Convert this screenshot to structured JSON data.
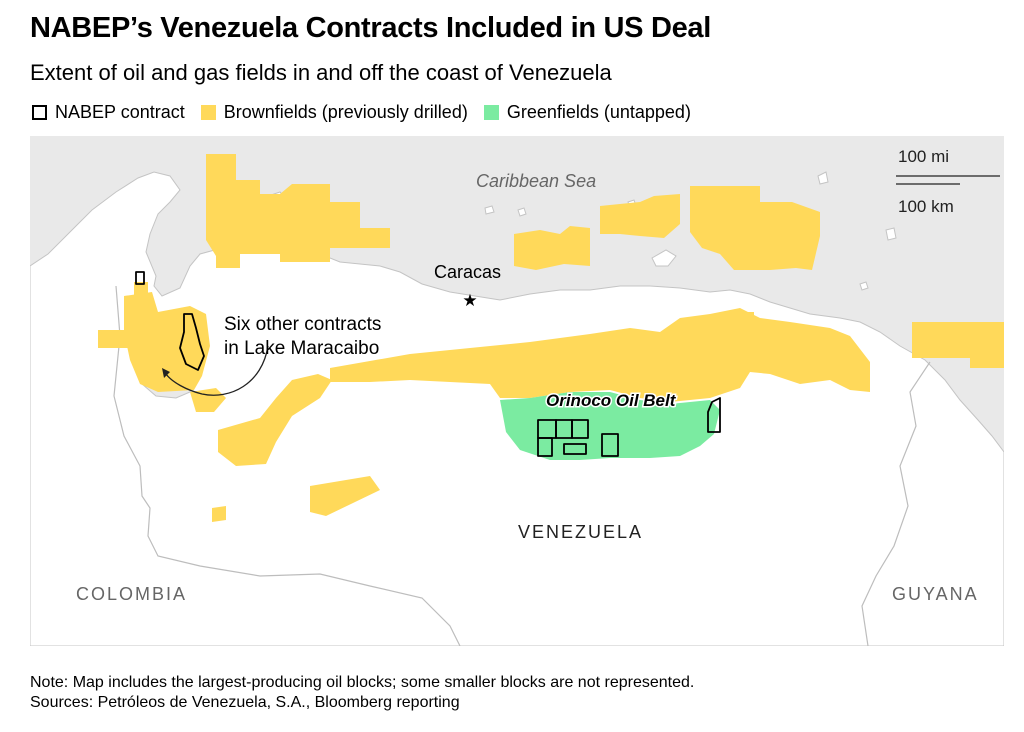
{
  "title": "NABEP’s Venezuela Contracts Included in US Deal",
  "subtitle": "Extent of oil and gas fields in and off the coast of Venezuela",
  "legend": [
    {
      "label": "NABEP contract",
      "style": "outline",
      "color": "#000000"
    },
    {
      "label": "Brownfields (previously drilled)",
      "style": "fill",
      "color": "#ffd95a"
    },
    {
      "label": "Greenfields (untapped)",
      "style": "fill",
      "color": "#7beba1"
    }
  ],
  "colors": {
    "sea": "#e9e9e9",
    "land": "#ffffff",
    "brownfield": "#ffd95a",
    "greenfield": "#7beba1",
    "border": "#b8b8b8"
  },
  "map": {
    "sea_label": "Caribbean Sea",
    "city": {
      "name": "Caracas",
      "icon": "star-icon"
    },
    "annotation": "Six other contracts\nin Lake Maracaibo",
    "orinoco_label": "Orinoco Oil Belt",
    "countries": {
      "venezuela": "VENEZUELA",
      "colombia": "COLOMBIA",
      "guyana": "GUYANA"
    },
    "scale": {
      "miles": "100 mi",
      "km": "100 km"
    }
  },
  "note": "Note: Map includes the largest-producing oil blocks; some smaller blocks are not represented.",
  "sources": "Sources: Petróleos de Venezuela, S.A., Bloomberg reporting"
}
